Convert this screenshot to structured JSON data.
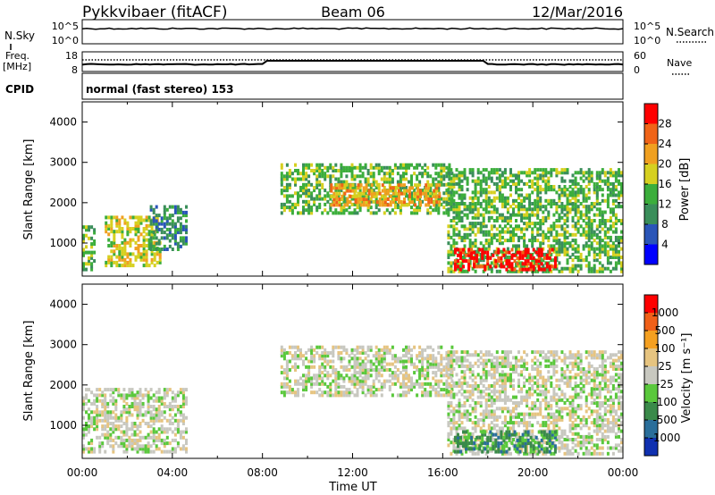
{
  "header": {
    "radar": "Pykkvibaer (fitACF)",
    "beam": "Beam 06",
    "date": "12/Mar/2016"
  },
  "noise_panel": {
    "left_label": "N.Sky",
    "left_ticks": [
      "10^5",
      "10^0"
    ],
    "right_ticks": [
      "10^5",
      "10^0"
    ],
    "right_label": "N.Search"
  },
  "freq_panel": {
    "left_label_1": "Freq.",
    "left_label_2": "[MHz]",
    "left_ticks": [
      "18",
      "8"
    ],
    "right_ticks": [
      "60",
      "0"
    ],
    "right_label": "Nave"
  },
  "cpid": {
    "label": "CPID",
    "value": "normal (fast stereo) 153"
  },
  "chart_data": [
    {
      "type": "heatmap",
      "panel": "power",
      "ylabel": "Slant Range [km]",
      "ylim": [
        180,
        4500
      ],
      "yticks": [
        "1000",
        "2000",
        "3000",
        "4000"
      ],
      "xlim": [
        "00:00",
        "24:00"
      ],
      "colorbar": {
        "label": "Power [dB]",
        "ticks": [
          "4",
          "8",
          "12",
          "16",
          "20",
          "24",
          "28"
        ],
        "colors": [
          "#0000ff",
          "#2a55b8",
          "#3a8e5a",
          "#3cae3c",
          "#d6d020",
          "#f0a020",
          "#f06418",
          "#ff0000"
        ]
      },
      "echo_regions": [
        {
          "t": [
            0.0,
            0.5
          ],
          "range": [
            300,
            1400
          ],
          "level": 3
        },
        {
          "t": [
            1.0,
            3.5
          ],
          "range": [
            400,
            1600
          ],
          "level": 4
        },
        {
          "t": [
            3.0,
            4.6
          ],
          "range": [
            800,
            1900
          ],
          "level": 2
        },
        {
          "t": [
            8.8,
            16.4
          ],
          "range": [
            1700,
            2900
          ],
          "level": 3
        },
        {
          "t": [
            11.0,
            15.8
          ],
          "range": [
            1900,
            2400
          ],
          "level": 5
        },
        {
          "t": [
            16.2,
            23.9
          ],
          "range": [
            250,
            2800
          ],
          "level": 3
        },
        {
          "t": [
            16.5,
            21.0
          ],
          "range": [
            300,
            800
          ],
          "level": 7
        }
      ]
    },
    {
      "type": "heatmap",
      "panel": "velocity",
      "ylabel": "Slant Range [km]",
      "ylim": [
        180,
        4500
      ],
      "yticks": [
        "1000",
        "2000",
        "3000",
        "4000"
      ],
      "xlabel": "Time UT",
      "xticks": [
        "00:00",
        "04:00",
        "08:00",
        "12:00",
        "16:00",
        "20:00",
        "00:00"
      ],
      "colorbar": {
        "label": "Velocity [m s⁻¹]",
        "ticks": [
          "1000",
          "500",
          "100",
          "25",
          "-25",
          "-100",
          "-500",
          "-1000"
        ],
        "colors": [
          "#1030b0",
          "#2a6e9a",
          "#3a8a4a",
          "#5ac83c",
          "#c8c8c0",
          "#e6c480",
          "#f5a020",
          "#f06018",
          "#ff0000"
        ]
      },
      "echo_regions": [
        {
          "t": [
            0.0,
            4.6
          ],
          "range": [
            300,
            1900
          ],
          "level": 4
        },
        {
          "t": [
            8.8,
            16.4
          ],
          "range": [
            1700,
            2900
          ],
          "level": 4
        },
        {
          "t": [
            16.2,
            23.9
          ],
          "range": [
            250,
            2800
          ],
          "level": 4
        },
        {
          "t": [
            16.5,
            21.0
          ],
          "range": [
            300,
            800
          ],
          "level": 2
        }
      ]
    }
  ]
}
